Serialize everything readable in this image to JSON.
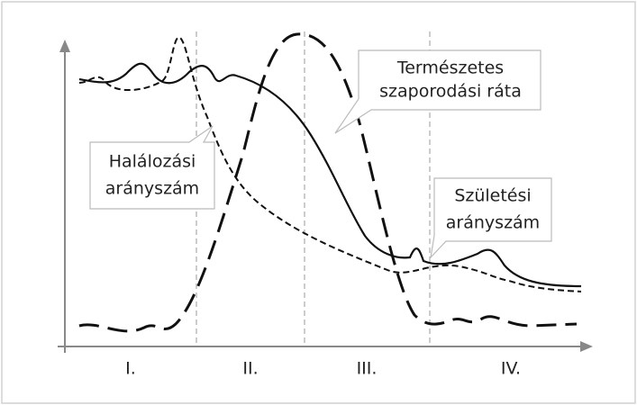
{
  "callouts": {
    "growth": [
      "Természetes",
      "szaporodási ráta"
    ],
    "death": [
      "Halálozási",
      "arányszám"
    ],
    "birth": [
      "Születési",
      "arányszám"
    ]
  },
  "phases": [
    "I.",
    "II.",
    "III.",
    "IV."
  ]
}
